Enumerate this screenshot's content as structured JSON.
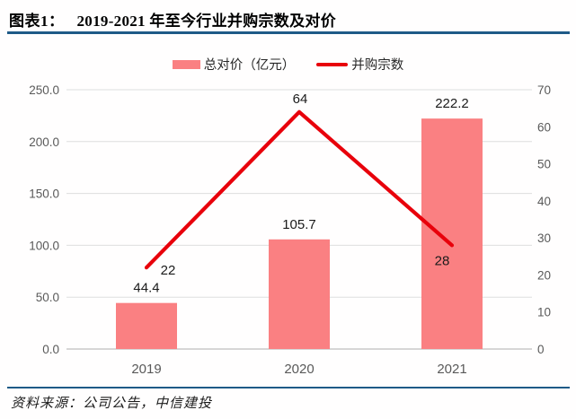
{
  "header": {
    "figure_label": "图表1：",
    "title": "2019-2021 年至今行业并购宗数及对价"
  },
  "legend": {
    "items": [
      {
        "label": "总对价（亿元）",
        "swatch": "bar",
        "color": "#FA8082"
      },
      {
        "label": "并购宗数",
        "swatch": "line",
        "color": "#E8000B"
      }
    ],
    "position": "top"
  },
  "chart_data": {
    "type": "combo",
    "title": "2019-2021 年至今行业并购宗数及对价",
    "categories": [
      "2019",
      "2020",
      "2021"
    ],
    "series": [
      {
        "name": "总对价（亿元）",
        "type": "bar",
        "axis": "left",
        "color": "#FA8082",
        "values": [
          44.4,
          105.7,
          222.2
        ],
        "labels": [
          "44.4",
          "105.7",
          "222.2"
        ]
      },
      {
        "name": "并购宗数",
        "type": "line",
        "axis": "right",
        "color": "#E8000B",
        "values": [
          22,
          64,
          28
        ],
        "labels": [
          "22",
          "64",
          "28"
        ]
      }
    ],
    "left_axis": {
      "min": 0,
      "max": 250,
      "tick_labels": [
        "0.0",
        "50.0",
        "100.0",
        "150.0",
        "200.0",
        "250.0"
      ]
    },
    "right_axis": {
      "min": 0,
      "max": 70,
      "tick_labels": [
        "0",
        "10",
        "20",
        "30",
        "40",
        "50",
        "60",
        "70"
      ]
    },
    "grid": true,
    "grid_color": "#DEDEDE",
    "axis_line_color": "#BFBFBF",
    "tick_label_color": "#595959",
    "category_label_color": "#595959",
    "value_label_color": "#1A1A1A"
  },
  "footer": {
    "source": "资料来源：公司公告，中信建投"
  },
  "theme": {
    "rule_color": "#1E5A87",
    "background": "#FFFFFF"
  }
}
